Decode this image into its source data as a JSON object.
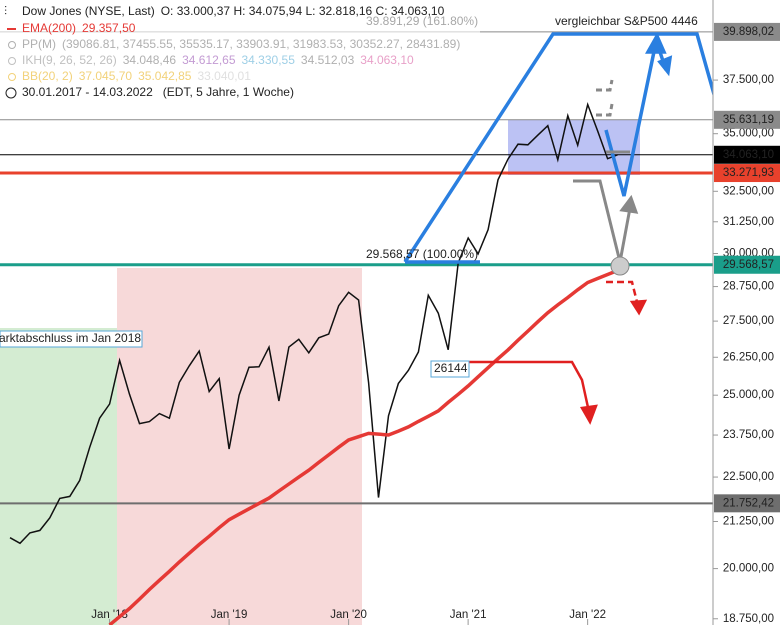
{
  "chart_data": {
    "type": "line",
    "log_scale": true,
    "ohlc_text": "O: 33.000,37  H: 34.075,94  L: 32.818,16  C: 34.063,10",
    "range_text": "30.01.2017 - 14.03.2022",
    "range_note": "(EDT, 5 Jahre, 1 Woche)",
    "indicators": [
      {
        "name": "PP(M)",
        "color": "#b0b0b0",
        "parts": [
          {
            "text": "(39086.81, 37455.55, 35535.17, 33903.91, 31983.53, 30352.27, 28431.89)",
            "color": "#b0b0b0"
          }
        ]
      },
      {
        "name": "IKH(9, 26, 52, 26)",
        "color": "#c0c0c0",
        "parts": [
          {
            "text": "34.048,46",
            "color": "#b0b0b0"
          },
          {
            "text": "34.612,65",
            "color": "#c39bd3"
          },
          {
            "text": "34.330,55",
            "color": "#9ecfe6"
          },
          {
            "text": "34.512,03",
            "color": "#b0b0b0"
          },
          {
            "text": "34.063,10",
            "color": "#e8a0c8"
          }
        ]
      },
      {
        "name": "BB(20, 2)",
        "color": "#f2d27a",
        "parts": [
          {
            "text": "37.045,70",
            "color": "#f2d27a"
          },
          {
            "text": "35.042,85",
            "color": "#f2d27a"
          },
          {
            "text": "33.040,01",
            "color": "#e0e0e0"
          }
        ]
      }
    ],
    "categories": [
      null,
      null,
      null,
      null,
      null,
      null,
      null,
      null,
      null,
      null,
      null,
      "Jan '18",
      null,
      null,
      null,
      null,
      null,
      null,
      null,
      null,
      null,
      null,
      null,
      "Jan '19",
      null,
      null,
      null,
      null,
      null,
      null,
      null,
      null,
      null,
      null,
      null,
      "Jan '20",
      null,
      null,
      null,
      null,
      null,
      null,
      null,
      null,
      null,
      null,
      null,
      "Jan '21",
      null,
      null,
      null,
      null,
      null,
      null,
      null,
      null,
      null,
      null,
      null,
      "Jan '22",
      null,
      null
    ],
    "series": [
      {
        "name": "Dow Jones (NYSE, Last)",
        "color": "#111111",
        "values": [
          20812,
          20663,
          20940,
          21009,
          21350,
          21891,
          21948,
          22405,
          23377,
          24272,
          24719,
          26149,
          25029,
          24103,
          24163,
          24416,
          24271,
          25415,
          25965,
          26458,
          25116,
          25538,
          23327,
          24999,
          25916,
          25929,
          26593,
          24815,
          26600,
          26864,
          26403,
          26917,
          27046,
          28051,
          28538,
          28256,
          25409,
          21917,
          24346,
          25383,
          25813,
          26428,
          28430,
          27782,
          26502,
          29639,
          30606,
          29983,
          30932,
          32982,
          33875,
          34529,
          34503,
          34935,
          35361,
          33844,
          35820,
          34484,
          36338,
          35132,
          33893,
          34063
        ]
      },
      {
        "name": "EMA(200)",
        "last_label": "29.357,50",
        "color": "#e53935",
        "values": [
          null,
          null,
          null,
          null,
          null,
          null,
          null,
          null,
          null,
          null,
          18600,
          18800,
          19000,
          19230,
          19470,
          19700,
          19930,
          20170,
          20400,
          20630,
          20850,
          21080,
          21300,
          21450,
          21600,
          21750,
          21900,
          22100,
          22300,
          22500,
          22700,
          22930,
          23150,
          23380,
          23600,
          23700,
          23800,
          23780,
          23750,
          23870,
          24000,
          24170,
          24330,
          24500,
          24770,
          25030,
          25300,
          25600,
          25900,
          26200,
          26500,
          26830,
          27150,
          27480,
          27800,
          28080,
          28350,
          28630,
          28900,
          29050,
          29200,
          29350
        ]
      }
    ],
    "ylim": [
      18600,
      41570
    ],
    "yticks": [
      {
        "value": 18750,
        "label": "18.750,00"
      },
      {
        "value": 20000,
        "label": "20.000,00"
      },
      {
        "value": 21250,
        "label": "21.250,00"
      },
      {
        "value": 22500,
        "label": "22.500,00"
      },
      {
        "value": 23750,
        "label": "23.750,00"
      },
      {
        "value": 25000,
        "label": "25.000,00"
      },
      {
        "value": 26250,
        "label": "26.250,00"
      },
      {
        "value": 27500,
        "label": "27.500,00"
      },
      {
        "value": 28750,
        "label": "28.750,00"
      },
      {
        "value": 30000,
        "label": "30.000,00"
      },
      {
        "value": 31250,
        "label": "31.250,00"
      },
      {
        "value": 32500,
        "label": "32.500,00"
      },
      {
        "value": 35000,
        "label": "35.000,00"
      },
      {
        "value": 37500,
        "label": "37.500,00"
      }
    ],
    "price_levels": [
      {
        "value": 39898.02,
        "label": "39.898,02",
        "color": "#8a8a8a"
      },
      {
        "value": 35631.19,
        "label": "35.631,19",
        "color": "#8a8a8a"
      },
      {
        "value": 34063.1,
        "label": "34.063,10",
        "color": "#000000"
      },
      {
        "value": 33271.93,
        "label": "33.271,93",
        "color": "#e8412c"
      },
      {
        "value": 29568.57,
        "label": "29.568,57",
        "color": "#1a9e8a"
      },
      {
        "value": 21752.42,
        "label": "21.752,42",
        "color": "#6e6e6e"
      }
    ],
    "annotations": [
      "39.891,29 (161.80%)",
      "vergleichbar  S&P500 4446",
      "29.568,57 (100.00%)",
      "arktabschluss im Jan 2018",
      "26144"
    ]
  }
}
